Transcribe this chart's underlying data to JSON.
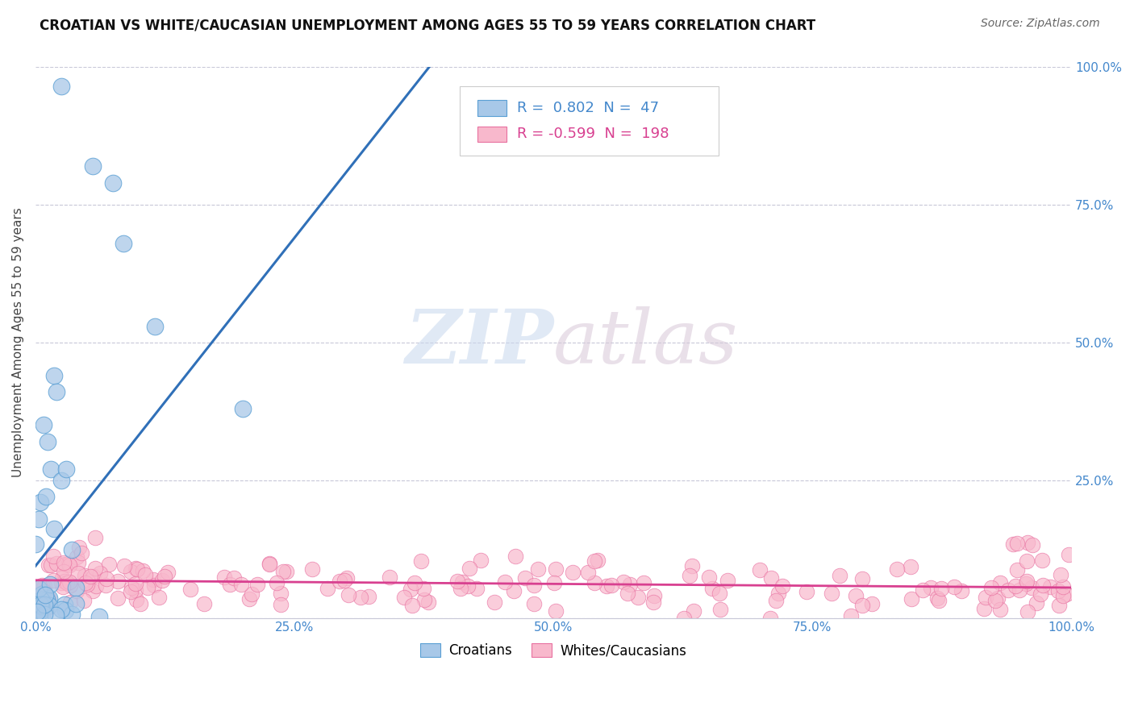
{
  "title": "CROATIAN VS WHITE/CAUCASIAN UNEMPLOYMENT AMONG AGES 55 TO 59 YEARS CORRELATION CHART",
  "source": "Source: ZipAtlas.com",
  "ylabel": "Unemployment Among Ages 55 to 59 years",
  "xlim": [
    0,
    1
  ],
  "ylim": [
    0,
    1
  ],
  "xticks": [
    0.0,
    0.25,
    0.5,
    0.75,
    1.0
  ],
  "xtick_labels": [
    "0.0%",
    "25.0%",
    "50.0%",
    "75.0%",
    "100.0%"
  ],
  "yticks": [
    0.0,
    0.25,
    0.5,
    0.75,
    1.0
  ],
  "ytick_labels": [
    "",
    "25.0%",
    "50.0%",
    "75.0%",
    "100.0%"
  ],
  "croatian_color": "#a8c8e8",
  "croatian_edge": "#5a9fd4",
  "white_color": "#f8b8cc",
  "white_edge": "#e870a0",
  "croatian_line_color": "#3070b8",
  "white_line_color": "#d84090",
  "R_croatian": 0.802,
  "N_croatian": 47,
  "R_white": -0.599,
  "N_white": 198,
  "legend_label_croatian": "Croatians",
  "legend_label_white": "Whites/Caucasians",
  "watermark_zip": "ZIP",
  "watermark_atlas": "atlas",
  "background_color": "#ffffff",
  "title_fontsize": 12,
  "axis_label_fontsize": 11,
  "tick_fontsize": 11,
  "source_fontsize": 10,
  "legend_fontsize": 12,
  "grid_color": "#c8c8d8",
  "tick_color": "#4488cc"
}
